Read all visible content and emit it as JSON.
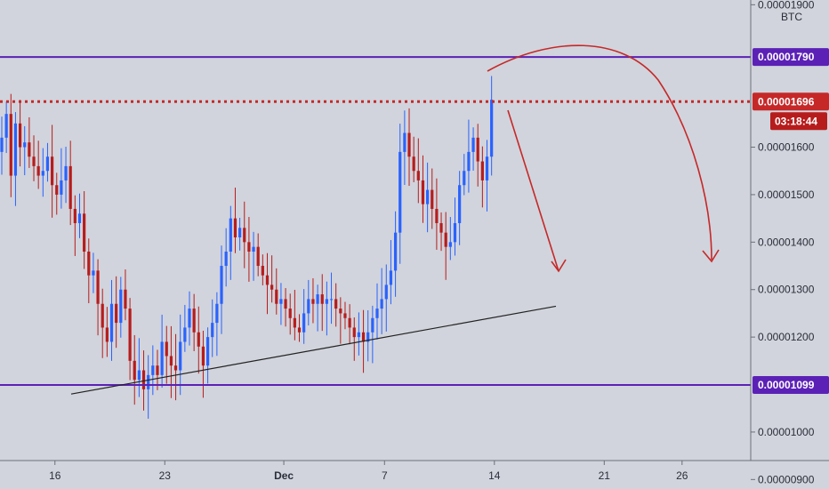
{
  "chart_data": {
    "type": "candlestick",
    "pair_unit": "BTC",
    "y_axis": {
      "range": [
        8.8e-06,
        1.91e-05
      ],
      "ticks": [
        {
          "value": 9e-06,
          "label": "0.00000900"
        },
        {
          "value": 1e-05,
          "label": "0.00001000"
        },
        {
          "value": 1.2e-05,
          "label": "0.00001200"
        },
        {
          "value": 1.3e-05,
          "label": "0.00001300"
        },
        {
          "value": 1.4e-05,
          "label": "0.00001400"
        },
        {
          "value": 1.5e-05,
          "label": "0.00001500"
        },
        {
          "value": 1.6e-05,
          "label": "0.00001600"
        },
        {
          "value": 1.9e-05,
          "label": "0.00001900"
        }
      ]
    },
    "x_axis": {
      "range": [
        0,
        116
      ],
      "ticks": [
        {
          "index": 12,
          "label": "16",
          "bold": false
        },
        {
          "index": 36,
          "label": "23",
          "bold": false
        },
        {
          "index": 62,
          "label": "Dec",
          "bold": true
        },
        {
          "index": 84,
          "label": "7",
          "bold": false
        },
        {
          "index": 108,
          "label": "14",
          "bold": false
        },
        {
          "index": 132,
          "label": "21",
          "bold": false
        },
        {
          "index": 149,
          "label": "26",
          "bold": false
        }
      ]
    },
    "x_domain": [
      0,
      164
    ],
    "levels": [
      {
        "value": 1.79e-05,
        "label": "0.00001790",
        "style": "solid",
        "color": "#5b21b6"
      },
      {
        "value": 1.696e-05,
        "label": "0.00001696",
        "style": "dotted",
        "color": "#c62828"
      },
      {
        "value": 1.099e-05,
        "label": "0.00001099",
        "style": "solid",
        "color": "#5b21b6"
      }
    ],
    "countdown": "03:18:44",
    "support_trendline": {
      "from": [
        16,
        1.08e-05
      ],
      "to": [
        124,
        1.265e-05
      ]
    },
    "closes": [
      1.62,
      1.67,
      1.54,
      1.65,
      1.6,
      1.61,
      1.58,
      1.56,
      1.54,
      1.55,
      1.58,
      1.52,
      1.5,
      1.53,
      1.56,
      1.47,
      1.44,
      1.46,
      1.38,
      1.33,
      1.34,
      1.27,
      1.22,
      1.19,
      1.27,
      1.23,
      1.3,
      1.26,
      1.15,
      1.11,
      1.13,
      1.09,
      1.12,
      1.14,
      1.12,
      1.19,
      1.16,
      1.14,
      1.13,
      1.19,
      1.22,
      1.26,
      1.21,
      1.18,
      1.14,
      1.2,
      1.23,
      1.27,
      1.35,
      1.38,
      1.45,
      1.41,
      1.43,
      1.4,
      1.38,
      1.39,
      1.35,
      1.33,
      1.31,
      1.3,
      1.27,
      1.28,
      1.26,
      1.24,
      1.22,
      1.21,
      1.25,
      1.28,
      1.27,
      1.29,
      1.27,
      1.28,
      1.28,
      1.26,
      1.25,
      1.24,
      1.22,
      1.2,
      1.21,
      1.19,
      1.21,
      1.24,
      1.26,
      1.28,
      1.31,
      1.34,
      1.42,
      1.59,
      1.63,
      1.58,
      1.55,
      1.53,
      1.48,
      1.51,
      1.47,
      1.44,
      1.42,
      1.39,
      1.4,
      1.44,
      1.52,
      1.55,
      1.59,
      1.62,
      1.57,
      1.53,
      1.58,
      1.7
    ],
    "colors": {
      "up": "#2962ff",
      "down": "#b71c1c",
      "level_purple": "#5b21b6",
      "level_red": "#c62828",
      "arrow": "#c62828",
      "trendline": "#222222"
    }
  }
}
